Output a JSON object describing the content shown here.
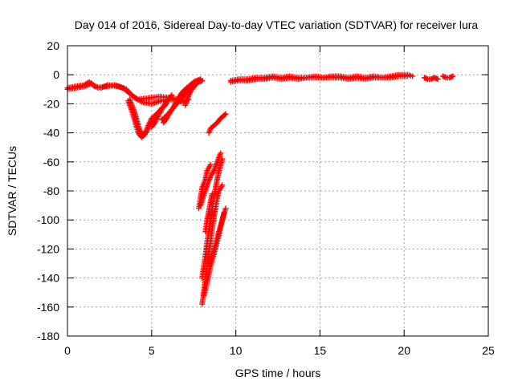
{
  "chart_data": {
    "type": "scatter",
    "title": "Day 014 of 2016, Sidereal Day-to-day VTEC variation (SDTVAR) for receiver lura",
    "xlabel": "GPS time / hours",
    "ylabel": "SDTVAR / TECUs",
    "xlim": [
      0,
      25
    ],
    "ylim": [
      -180,
      20
    ],
    "xticks": [
      0,
      5,
      10,
      15,
      20,
      25
    ],
    "yticks": [
      20,
      0,
      -20,
      -40,
      -60,
      -80,
      -100,
      -120,
      -140,
      -160,
      -180
    ],
    "grid": true,
    "marker": "plus",
    "series_color": "#ff0000",
    "segments": [
      [
        [
          0.0,
          -10
        ],
        [
          0.5,
          -9
        ],
        [
          1.0,
          -8
        ],
        [
          1.4,
          -6
        ],
        [
          1.6,
          -8
        ],
        [
          2.0,
          -9
        ],
        [
          2.4,
          -7
        ],
        [
          3.0,
          -8
        ],
        [
          3.5,
          -10
        ],
        [
          4.0,
          -16
        ],
        [
          4.5,
          -19
        ],
        [
          5.0,
          -20
        ],
        [
          5.5,
          -18
        ],
        [
          6.0,
          -17
        ],
        [
          6.5,
          -18
        ],
        [
          7.0,
          -19
        ]
      ],
      [
        [
          0.0,
          -9
        ],
        [
          0.5,
          -8
        ],
        [
          1.0,
          -7
        ],
        [
          1.3,
          -5
        ],
        [
          1.8,
          -9
        ],
        [
          2.3,
          -8
        ],
        [
          2.8,
          -7
        ],
        [
          3.3,
          -9
        ],
        [
          3.8,
          -14
        ],
        [
          4.2,
          -17
        ],
        [
          4.8,
          -16
        ],
        [
          5.5,
          -15
        ],
        [
          6.2,
          -16
        ],
        [
          6.8,
          -18
        ],
        [
          7.2,
          -17
        ]
      ],
      [
        [
          3.6,
          -18
        ],
        [
          3.8,
          -24
        ],
        [
          4.0,
          -32
        ],
        [
          4.2,
          -40
        ],
        [
          4.4,
          -43
        ],
        [
          4.6,
          -41
        ],
        [
          4.8,
          -35
        ],
        [
          5.0,
          -30
        ],
        [
          5.3,
          -27
        ],
        [
          5.6,
          -23
        ],
        [
          5.9,
          -20
        ]
      ],
      [
        [
          3.7,
          -17
        ],
        [
          3.9,
          -23
        ],
        [
          4.1,
          -30
        ],
        [
          4.3,
          -38
        ],
        [
          4.5,
          -42
        ],
        [
          4.7,
          -39
        ],
        [
          4.9,
          -34
        ],
        [
          5.2,
          -29
        ],
        [
          5.5,
          -25
        ]
      ],
      [
        [
          5.0,
          -36
        ],
        [
          5.2,
          -33
        ],
        [
          5.4,
          -28
        ],
        [
          5.6,
          -24
        ],
        [
          5.8,
          -20
        ],
        [
          6.0,
          -17
        ],
        [
          6.2,
          -14
        ]
      ],
      [
        [
          5.7,
          -33
        ],
        [
          5.9,
          -30
        ],
        [
          6.1,
          -26
        ],
        [
          6.3,
          -22
        ],
        [
          6.5,
          -18
        ],
        [
          6.7,
          -14
        ],
        [
          6.9,
          -11
        ],
        [
          7.1,
          -9
        ],
        [
          7.3,
          -7
        ],
        [
          7.5,
          -5
        ],
        [
          7.7,
          -4
        ],
        [
          7.9,
          -3
        ]
      ],
      [
        [
          5.6,
          -31
        ],
        [
          5.9,
          -28
        ],
        [
          6.2,
          -24
        ],
        [
          6.5,
          -20
        ],
        [
          6.8,
          -16
        ],
        [
          7.0,
          -13
        ],
        [
          7.2,
          -10
        ],
        [
          7.4,
          -8
        ],
        [
          7.6,
          -6
        ],
        [
          7.8,
          -5
        ],
        [
          8.0,
          -4
        ]
      ],
      [
        [
          7.0,
          -21
        ],
        [
          7.1,
          -18
        ],
        [
          7.2,
          -14
        ],
        [
          7.4,
          -10
        ],
        [
          7.6,
          -7
        ],
        [
          7.8,
          -4
        ]
      ],
      [
        [
          7.8,
          -92
        ],
        [
          7.9,
          -85
        ],
        [
          8.0,
          -78
        ],
        [
          8.2,
          -72
        ],
        [
          8.3,
          -66
        ],
        [
          8.5,
          -62
        ]
      ],
      [
        [
          7.9,
          -90
        ],
        [
          8.1,
          -83
        ],
        [
          8.3,
          -76
        ],
        [
          8.5,
          -70
        ],
        [
          8.7,
          -66
        ],
        [
          8.9,
          -60
        ],
        [
          9.1,
          -54
        ]
      ],
      [
        [
          8.0,
          -158
        ],
        [
          8.1,
          -150
        ],
        [
          8.2,
          -140
        ],
        [
          8.3,
          -130
        ],
        [
          8.4,
          -122
        ],
        [
          8.5,
          -115
        ],
        [
          8.6,
          -106
        ],
        [
          8.7,
          -98
        ],
        [
          8.8,
          -92
        ],
        [
          8.9,
          -85
        ],
        [
          9.0,
          -80
        ],
        [
          9.2,
          -76
        ]
      ],
      [
        [
          8.1,
          -152
        ],
        [
          8.3,
          -143
        ],
        [
          8.5,
          -132
        ],
        [
          8.7,
          -124
        ],
        [
          8.9,
          -115
        ],
        [
          9.1,
          -105
        ],
        [
          9.3,
          -95
        ]
      ],
      [
        [
          8.0,
          -140
        ],
        [
          8.1,
          -132
        ],
        [
          8.2,
          -124
        ],
        [
          8.3,
          -115
        ],
        [
          8.4,
          -108
        ],
        [
          8.5,
          -100
        ],
        [
          8.6,
          -92
        ],
        [
          8.7,
          -85
        ],
        [
          8.8,
          -78
        ],
        [
          8.9,
          -72
        ],
        [
          9.0,
          -66
        ],
        [
          9.2,
          -58
        ]
      ],
      [
        [
          8.4,
          -130
        ],
        [
          8.6,
          -124
        ],
        [
          8.8,
          -116
        ],
        [
          9.0,
          -108
        ],
        [
          9.2,
          -100
        ],
        [
          9.4,
          -92
        ]
      ],
      [
        [
          8.2,
          -108
        ],
        [
          8.3,
          -100
        ],
        [
          8.4,
          -94
        ],
        [
          8.5,
          -88
        ],
        [
          8.6,
          -82
        ]
      ],
      [
        [
          8.4,
          -40
        ],
        [
          8.5,
          -37
        ],
        [
          8.7,
          -35
        ],
        [
          8.9,
          -33
        ],
        [
          9.1,
          -30
        ],
        [
          9.3,
          -28
        ],
        [
          9.4,
          -27
        ]
      ],
      [
        [
          9.7,
          -4
        ],
        [
          10.2,
          -3
        ],
        [
          10.7,
          -3
        ],
        [
          11.2,
          -2
        ],
        [
          11.7,
          -2
        ],
        [
          12.2,
          -1
        ],
        [
          12.7,
          -2
        ],
        [
          13.2,
          -1
        ],
        [
          13.7,
          -2
        ],
        [
          14.2,
          -2
        ],
        [
          14.7,
          -1
        ],
        [
          15.2,
          -2
        ],
        [
          15.7,
          -1
        ],
        [
          16.2,
          -1
        ],
        [
          16.7,
          -2
        ],
        [
          17.2,
          -1
        ],
        [
          17.7,
          -2
        ],
        [
          18.2,
          -1
        ],
        [
          18.7,
          -2
        ],
        [
          19.2,
          -1
        ],
        [
          19.7,
          0
        ],
        [
          20.2,
          0
        ],
        [
          20.5,
          -1
        ]
      ],
      [
        [
          9.7,
          -5
        ],
        [
          10.2,
          -4
        ],
        [
          10.7,
          -4
        ],
        [
          11.2,
          -3
        ],
        [
          11.7,
          -3
        ],
        [
          12.2,
          -2
        ],
        [
          12.7,
          -3
        ],
        [
          13.2,
          -2
        ],
        [
          13.7,
          -3
        ],
        [
          14.2,
          -2
        ],
        [
          14.7,
          -2
        ],
        [
          15.2,
          -2
        ],
        [
          15.7,
          -2
        ],
        [
          16.2,
          -2
        ],
        [
          16.7,
          -3
        ],
        [
          17.2,
          -2
        ],
        [
          17.7,
          -3
        ],
        [
          18.2,
          -2
        ],
        [
          18.7,
          -2
        ],
        [
          19.2,
          -2
        ],
        [
          19.7,
          -1
        ],
        [
          20.2,
          -1
        ]
      ],
      [
        [
          21.2,
          -2
        ],
        [
          21.4,
          -3
        ],
        [
          21.6,
          -3
        ],
        [
          21.8,
          -2
        ],
        [
          22.0,
          -3
        ]
      ],
      [
        [
          22.3,
          -1
        ],
        [
          22.5,
          -2
        ],
        [
          22.7,
          -2
        ],
        [
          22.9,
          -1
        ]
      ]
    ]
  }
}
